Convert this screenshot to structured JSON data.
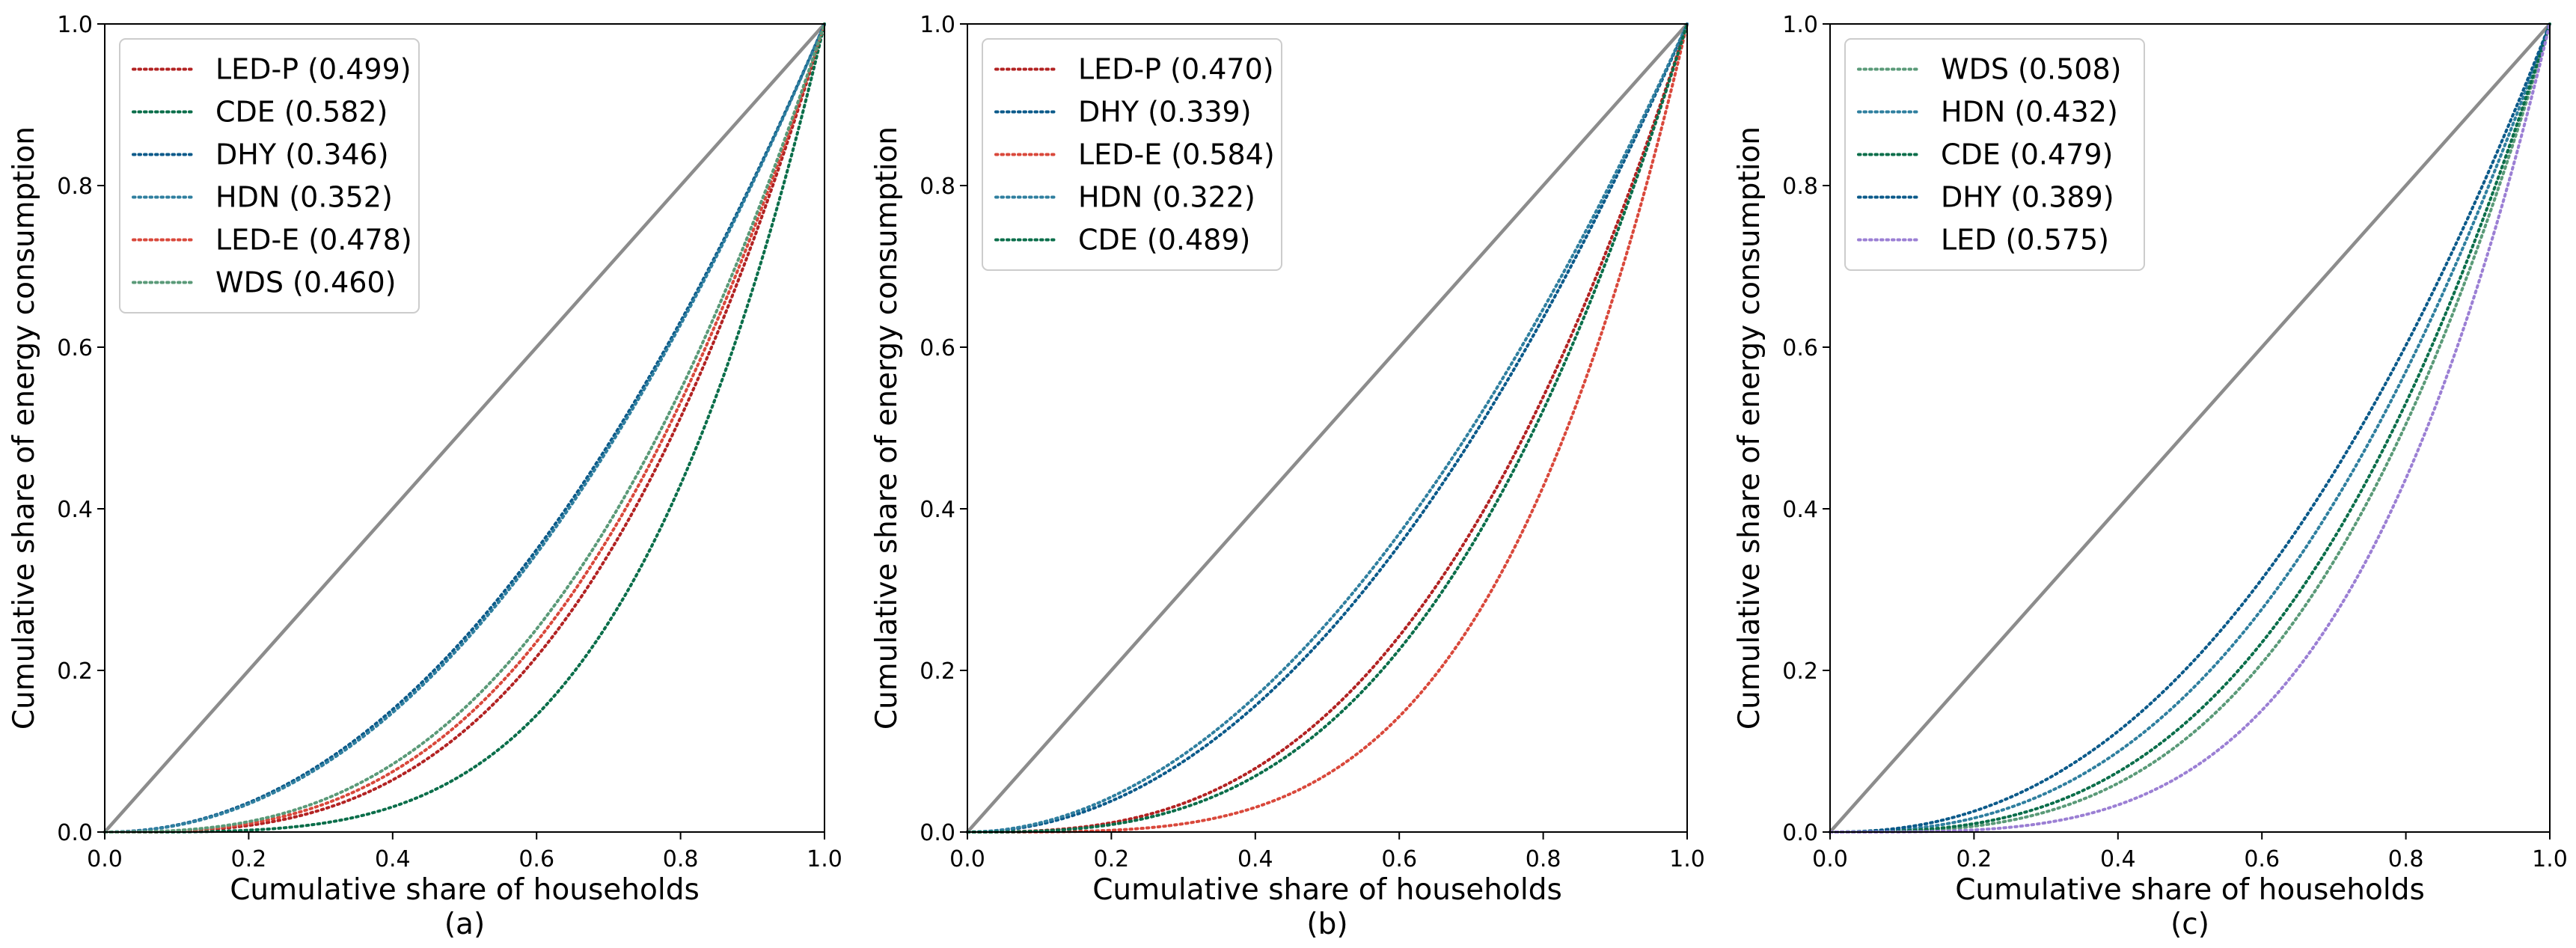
{
  "chart_data": [
    {
      "type": "line",
      "caption": "(a)",
      "xlabel": "Cumulative share of households",
      "ylabel": "Cumulative share of energy consumption",
      "xlim": [
        0,
        1
      ],
      "ylim": [
        0,
        1
      ],
      "xticks": [
        "0.0",
        "0.2",
        "0.4",
        "0.6",
        "0.8",
        "1.0"
      ],
      "yticks": [
        "0.0",
        "0.2",
        "0.4",
        "0.6",
        "0.8",
        "1.0"
      ],
      "legend_position": "upper-left",
      "equality_line": {
        "x": [
          0,
          1
        ],
        "y": [
          0,
          1
        ],
        "color": "#8c8c8c"
      },
      "series": [
        {
          "name": "LED-P (0.499)",
          "gini": 0.499,
          "color": "#b22222"
        },
        {
          "name": "CDE (0.582)",
          "gini": 0.582,
          "color": "#0a6e4a"
        },
        {
          "name": "DHY (0.346)",
          "gini": 0.346,
          "color": "#0b5a8a"
        },
        {
          "name": "HDN (0.352)",
          "gini": 0.352,
          "color": "#2f7f9f"
        },
        {
          "name": "LED-E (0.478)",
          "gini": 0.478,
          "color": "#d9483b"
        },
        {
          "name": "WDS (0.460)",
          "gini": 0.46,
          "color": "#5a9a78"
        }
      ]
    },
    {
      "type": "line",
      "caption": "(b)",
      "xlabel": "Cumulative share of households",
      "ylabel": "Cumulative share of energy consumption",
      "xlim": [
        0,
        1
      ],
      "ylim": [
        0,
        1
      ],
      "xticks": [
        "0.0",
        "0.2",
        "0.4",
        "0.6",
        "0.8",
        "1.0"
      ],
      "yticks": [
        "0.0",
        "0.2",
        "0.4",
        "0.6",
        "0.8",
        "1.0"
      ],
      "legend_position": "upper-left",
      "equality_line": {
        "x": [
          0,
          1
        ],
        "y": [
          0,
          1
        ],
        "color": "#8c8c8c"
      },
      "series": [
        {
          "name": "LED-P (0.470)",
          "gini": 0.47,
          "color": "#b22222"
        },
        {
          "name": "DHY (0.339)",
          "gini": 0.339,
          "color": "#0b5a8a"
        },
        {
          "name": "LED-E (0.584)",
          "gini": 0.584,
          "color": "#d9483b"
        },
        {
          "name": "HDN (0.322)",
          "gini": 0.322,
          "color": "#2f7f9f"
        },
        {
          "name": "CDE (0.489)",
          "gini": 0.489,
          "color": "#0a6e4a"
        }
      ]
    },
    {
      "type": "line",
      "caption": "(c)",
      "xlabel": "Cumulative share of households",
      "ylabel": "Cumulative share of energy consumption",
      "xlim": [
        0,
        1
      ],
      "ylim": [
        0,
        1
      ],
      "xticks": [
        "0.0",
        "0.2",
        "0.4",
        "0.6",
        "0.8",
        "1.0"
      ],
      "yticks": [
        "0.0",
        "0.2",
        "0.4",
        "0.6",
        "0.8",
        "1.0"
      ],
      "legend_position": "upper-left",
      "equality_line": {
        "x": [
          0,
          1
        ],
        "y": [
          0,
          1
        ],
        "color": "#8c8c8c"
      },
      "series": [
        {
          "name": "WDS (0.508)",
          "gini": 0.508,
          "color": "#5a9a78"
        },
        {
          "name": "HDN (0.432)",
          "gini": 0.432,
          "color": "#2f7f9f"
        },
        {
          "name": "CDE (0.479)",
          "gini": 0.479,
          "color": "#0a6e4a"
        },
        {
          "name": "DHY (0.389)",
          "gini": 0.389,
          "color": "#0b5a8a"
        },
        {
          "name": "LED (0.575)",
          "gini": 0.575,
          "color": "#9b7fd4"
        }
      ]
    }
  ]
}
